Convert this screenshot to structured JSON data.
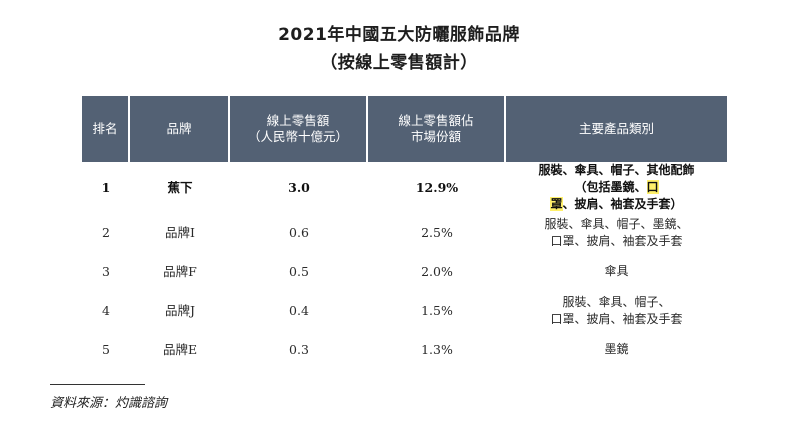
{
  "title": "2021年中國五大防曬服飾品牌",
  "subtitle": "（按線上零售額計）",
  "table": {
    "headers": [
      {
        "line1": "排名",
        "line2": ""
      },
      {
        "line1": "品牌",
        "line2": ""
      },
      {
        "line1": "線上零售額",
        "line2": "（人民幣十億元）"
      },
      {
        "line1": "線上零售額佔",
        "line2": "市場份額"
      },
      {
        "line1": "主要產品類別",
        "line2": ""
      }
    ],
    "rows": [
      {
        "rank": "1",
        "brand": "蕉下",
        "sales": "3.0",
        "share": "12.9%",
        "cat_line1": "服裝、傘具、帽子、其他配飾",
        "cat_line2_pre": "（包括墨鏡、",
        "cat_line2_hl": "口罩",
        "cat_line2_post": "、披肩、袖套及手套）"
      },
      {
        "rank": "2",
        "brand": "品牌I",
        "sales": "0.6",
        "share": "2.5%",
        "cat_line1": "服裝、傘具、帽子、墨鏡、",
        "cat_line2": "口罩、披肩、袖套及手套"
      },
      {
        "rank": "3",
        "brand": "品牌F",
        "sales": "0.5",
        "share": "2.0%",
        "cat_line1": "傘具",
        "cat_line2": ""
      },
      {
        "rank": "4",
        "brand": "品牌J",
        "sales": "0.4",
        "share": "1.5%",
        "cat_line1": "服裝、傘具、帽子、",
        "cat_line2": "口罩、披肩、袖套及手套"
      },
      {
        "rank": "5",
        "brand": "品牌E",
        "sales": "0.3",
        "share": "1.3%",
        "cat_line1": "墨鏡",
        "cat_line2": ""
      }
    ]
  },
  "colors": {
    "header_bg": "#536174",
    "highlight": "#fff06a"
  },
  "source": "資料來源：灼識諮詢"
}
